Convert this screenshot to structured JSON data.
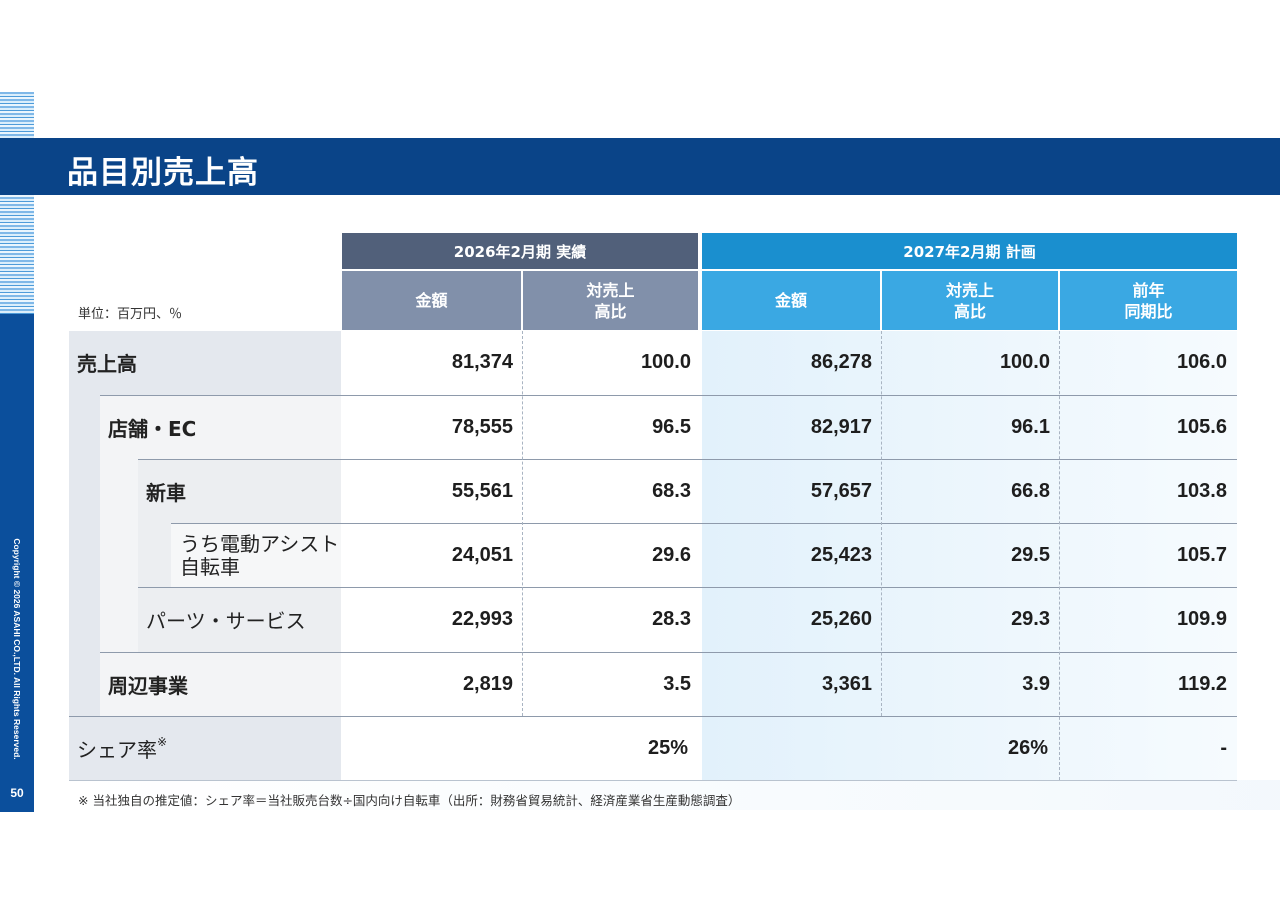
{
  "page_title": "品目別売上高",
  "page_number": "50",
  "copyright": "Copyright © 2026 ASAHI CO.,LTD. All Rights Reserved.",
  "unit_label": "単位：百万円、％",
  "header": {
    "group_2026": "2026年2月期 実績",
    "group_2027": "2027年2月期 計画",
    "col_amount_2026": "金額",
    "col_ratio_2026": "対売上\n高比",
    "col_amount_2027": "金額",
    "col_ratio_2027": "対売上\n高比",
    "col_yoy_2027": "前年\n同期比"
  },
  "rows": [
    {
      "label": "売上高",
      "a2026": "81,374",
      "r2026": "100.0",
      "a2027": "86,278",
      "r2027": "100.0",
      "yoy": "106.0"
    },
    {
      "label": "店舗・EC",
      "a2026": "78,555",
      "r2026": "96.5",
      "a2027": "82,917",
      "r2027": "96.1",
      "yoy": "105.6"
    },
    {
      "label": "新車",
      "a2026": "55,561",
      "r2026": "68.3",
      "a2027": "57,657",
      "r2027": "66.8",
      "yoy": "103.8"
    },
    {
      "label": "うち電動アシスト\n自転車",
      "a2026": "24,051",
      "r2026": "29.6",
      "a2027": "25,423",
      "r2027": "29.5",
      "yoy": "105.7"
    },
    {
      "label": "パーツ・サービス",
      "a2026": "22,993",
      "r2026": "28.3",
      "a2027": "25,260",
      "r2027": "29.3",
      "yoy": "109.9"
    },
    {
      "label": "周辺事業",
      "a2026": "2,819",
      "r2026": "3.5",
      "a2027": "3,361",
      "r2027": "3.9",
      "yoy": "119.2"
    }
  ],
  "share_row": {
    "label": "シェア率",
    "mark": "※",
    "v2026": "25%",
    "v2027": "26%",
    "yoy": "-"
  },
  "footnote": "※ 当社独自の推定値：シェア率＝当社販売台数÷国内向け自転車（出所：財務省貿易統計、経済産業省生産動態調査）"
}
